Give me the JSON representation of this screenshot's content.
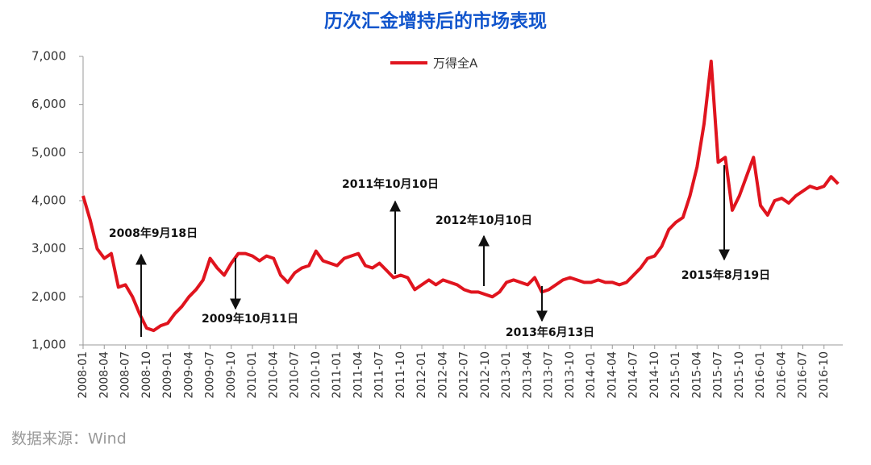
{
  "chart_data": {
    "type": "line",
    "title": "历次汇金增持后的市场表现",
    "x": [
      "2008-01",
      null,
      null,
      "2008-04",
      null,
      null,
      "2008-07",
      null,
      null,
      "2008-10",
      null,
      null,
      "2009-01",
      null,
      null,
      "2009-04",
      null,
      null,
      "2009-07",
      null,
      null,
      "2009-10",
      null,
      null,
      "2010-01",
      null,
      null,
      "2010-04",
      null,
      null,
      "2010-07",
      null,
      null,
      "2010-10",
      null,
      null,
      "2011-01",
      null,
      null,
      "2011-04",
      null,
      null,
      "2011-07",
      null,
      null,
      "2011-10",
      null,
      null,
      "2012-01",
      null,
      null,
      "2012-04",
      null,
      null,
      "2012-07",
      null,
      null,
      "2012-10",
      null,
      null,
      "2013-01",
      null,
      null,
      "2013-04",
      null,
      null,
      "2013-07",
      null,
      null,
      "2013-10",
      null,
      null,
      "2014-01",
      null,
      null,
      "2014-04",
      null,
      null,
      "2014-07",
      null,
      null,
      "2014-10",
      null,
      null,
      "2015-01",
      null,
      null,
      "2015-04",
      null,
      null,
      "2015-07",
      null,
      null,
      "2015-10",
      null,
      null,
      "2016-01",
      null,
      null,
      "2016-04",
      null,
      null,
      "2016-07",
      null,
      null,
      "2016-10",
      null,
      null
    ],
    "series": [
      {
        "name": "万得全A",
        "color": "#e0141e",
        "values": [
          4100,
          3600,
          3000,
          2800,
          2900,
          2200,
          2250,
          2000,
          1650,
          1350,
          1300,
          1400,
          1450,
          1650,
          1800,
          2000,
          2150,
          2350,
          2800,
          2600,
          2450,
          2700,
          2900,
          2900,
          2850,
          2750,
          2850,
          2800,
          2450,
          2300,
          2500,
          2600,
          2650,
          2950,
          2750,
          2700,
          2650,
          2800,
          2850,
          2900,
          2650,
          2600,
          2700,
          2550,
          2400,
          2450,
          2400,
          2150,
          2250,
          2350,
          2250,
          2350,
          2300,
          2250,
          2150,
          2100,
          2100,
          2050,
          2000,
          2100,
          2300,
          2350,
          2300,
          2250,
          2400,
          2100,
          2150,
          2250,
          2350,
          2400,
          2350,
          2300,
          2300,
          2350,
          2300,
          2300,
          2250,
          2300,
          2450,
          2600,
          2800,
          2850,
          3050,
          3400,
          3550,
          3650,
          4100,
          4700,
          5600,
          6900,
          4800,
          4900,
          3800,
          4100,
          4500,
          4900,
          3900,
          3700,
          4000,
          4050,
          3950,
          4100,
          4200,
          4300,
          4250,
          4300,
          4500,
          4350
        ]
      }
    ],
    "ylim": [
      1000,
      7000
    ],
    "yticks": [
      {
        "value": 1000,
        "label": "1,000"
      },
      {
        "value": 2000,
        "label": "2,000"
      },
      {
        "value": 3000,
        "label": "3,000"
      },
      {
        "value": 4000,
        "label": "4,000"
      },
      {
        "value": 5000,
        "label": "5,000"
      },
      {
        "value": 6000,
        "label": "6,000"
      },
      {
        "value": 7000,
        "label": "7,000"
      }
    ],
    "annotations": [
      "2008年9月18日",
      "2009年10月11日",
      "2011年10月10日",
      "2012年10月10日",
      "2013年6月13日",
      "2015年8月19日"
    ],
    "source": "数据来源：Wind"
  }
}
